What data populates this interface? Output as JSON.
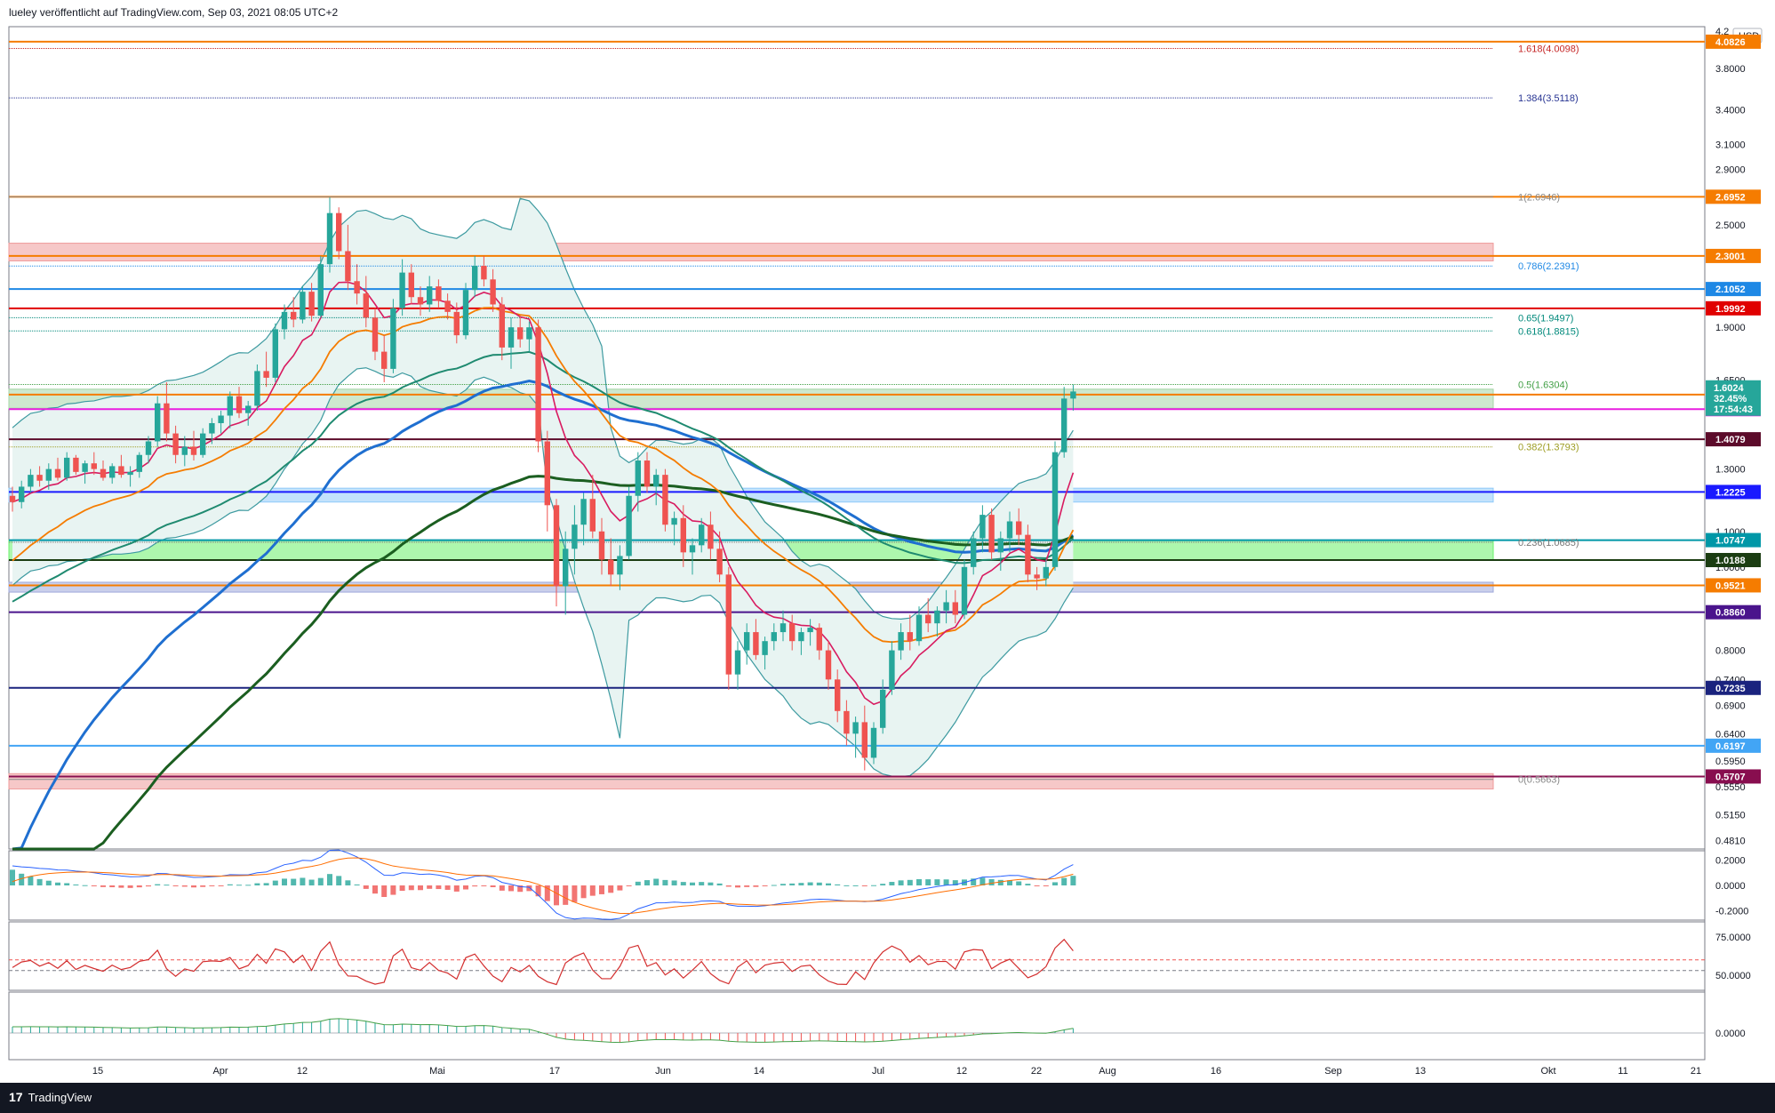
{
  "header": {
    "publish_text": "lueley veröffentlicht auf TradingView.com, Sep 03, 2021 08:05 UTC+2"
  },
  "footer": {
    "logo_text": "TradingView",
    "logo_mark": "17"
  },
  "currency": "USD",
  "colors": {
    "up": "#26a69a",
    "down": "#ef5350",
    "bb_fill": "#e8f4f2",
    "bb_line": "#3d9aa0",
    "ema_blue": "#1f6fd0",
    "ema_green": "#1b5e20",
    "ema_teal": "#1f8a70",
    "ema_orange": "#f57c00",
    "ema_red": "#d81b60"
  },
  "chart_data": {
    "type": "candlestick",
    "price_axis": {
      "ticks": [
        "4.2",
        "3.8000",
        "3.4000",
        "3.1000",
        "2.9000",
        "2.5000",
        "2.1000",
        "1.9000",
        "1.6500",
        "1.3000",
        "1.1000",
        "1.0000",
        "0.8000",
        "0.7400",
        "0.6900",
        "0.6400",
        "0.5950",
        "0.5550",
        "0.5150",
        "0.4810"
      ],
      "tick_values": [
        4.2,
        3.8,
        3.4,
        3.1,
        2.9,
        2.5,
        2.1,
        1.9,
        1.65,
        1.3,
        1.1,
        1.0,
        0.8,
        0.74,
        0.69,
        0.64,
        0.595,
        0.555,
        0.515,
        0.481
      ],
      "range": [
        0.47,
        4.25
      ],
      "scale": "log"
    },
    "x_axis": {
      "labels": [
        "15",
        "Apr",
        "12",
        "Mai",
        "17",
        "Jun",
        "14",
        "Jul",
        "12",
        "22",
        "Aug",
        "16",
        "Sep",
        "13",
        "Okt",
        "11",
        "21"
      ]
    },
    "horizontal_levels": [
      {
        "price": 4.0826,
        "color": "#f57c00",
        "badge": "4.0826"
      },
      {
        "price": 2.6952,
        "color": "#f57c00",
        "badge": "2.6952"
      },
      {
        "price": 2.3001,
        "color": "#f57c00",
        "badge": "2.3001"
      },
      {
        "price": 2.1052,
        "color": "#1e88e5",
        "badge": "2.1052"
      },
      {
        "price": 1.9992,
        "color": "#e00000",
        "badge": "1.9992"
      },
      {
        "price": 1.5867,
        "color": "#f57c00",
        "badge": "1.5867"
      },
      {
        "price": 1.526,
        "color": "#e91ee0",
        "badge": "1.5260"
      },
      {
        "price": 1.4079,
        "color": "#5c0b2a",
        "badge": "1.4079"
      },
      {
        "price": 1.2225,
        "color": "#1a1aff",
        "badge": "1.2225"
      },
      {
        "price": 1.0747,
        "color": "#0097a7",
        "badge": "1.0747"
      },
      {
        "price": 1.0188,
        "color": "#1b3d12",
        "badge": "1.0188"
      },
      {
        "price": 0.9521,
        "color": "#f57c00",
        "badge": "0.9521"
      },
      {
        "price": 0.886,
        "color": "#4a148c",
        "badge": "0.8860"
      },
      {
        "price": 0.7235,
        "color": "#1a237e",
        "badge": "0.7235"
      },
      {
        "price": 0.6197,
        "color": "#42a5f5",
        "badge": "0.6197"
      },
      {
        "price": 0.5707,
        "color": "#880e4f",
        "badge": "0.5707"
      }
    ],
    "fib_levels": [
      {
        "label": "1.618(4.0098)",
        "price": 4.0098,
        "color": "#c62828"
      },
      {
        "label": "1.384(3.5118)",
        "price": 3.5118,
        "color": "#283593"
      },
      {
        "label": "1(2.6946)",
        "price": 2.6946,
        "color": "#888888"
      },
      {
        "label": "0.786(2.2391)",
        "price": 2.2391,
        "color": "#1e88e5"
      },
      {
        "label": "0.65(1.9497)",
        "price": 1.9497,
        "color": "#00897b"
      },
      {
        "label": "0.618(1.8815)",
        "price": 1.8815,
        "color": "#00897b"
      },
      {
        "label": "0.5(1.6304)",
        "price": 1.6304,
        "color": "#43a047"
      },
      {
        "label": "0.382(1.3793)",
        "price": 1.3793,
        "color": "#9e9d24"
      },
      {
        "label": "0.236(1.0685)",
        "price": 1.0685,
        "color": "#777777"
      },
      {
        "label": "0(0.5663)",
        "price": 0.5663,
        "color": "#888888"
      }
    ],
    "current_price": {
      "price": "1.6024",
      "change": "32.45%",
      "countdown": "17:54:43"
    },
    "zones": [
      {
        "from": 2.27,
        "to": 2.38,
        "color": "#ef9a9a"
      },
      {
        "from": 1.53,
        "to": 1.61,
        "color": "#a5d6a7"
      },
      {
        "from": 1.19,
        "to": 1.235,
        "color": "#90caf9"
      },
      {
        "from": 1.02,
        "to": 1.075,
        "color": "#69f06a"
      },
      {
        "from": 0.935,
        "to": 0.96,
        "color": "#9fa8da"
      },
      {
        "from": 0.552,
        "to": 0.575,
        "color": "#ef9a9a"
      }
    ],
    "candles": [
      [
        1.21,
        1.24,
        1.16,
        1.19
      ],
      [
        1.19,
        1.26,
        1.17,
        1.24
      ],
      [
        1.24,
        1.3,
        1.22,
        1.28
      ],
      [
        1.28,
        1.31,
        1.24,
        1.26
      ],
      [
        1.26,
        1.32,
        1.23,
        1.3
      ],
      [
        1.3,
        1.34,
        1.26,
        1.27
      ],
      [
        1.27,
        1.36,
        1.26,
        1.34
      ],
      [
        1.34,
        1.35,
        1.28,
        1.29
      ],
      [
        1.29,
        1.33,
        1.25,
        1.32
      ],
      [
        1.32,
        1.36,
        1.28,
        1.3
      ],
      [
        1.3,
        1.33,
        1.26,
        1.27
      ],
      [
        1.27,
        1.32,
        1.25,
        1.31
      ],
      [
        1.31,
        1.35,
        1.27,
        1.28
      ],
      [
        1.28,
        1.31,
        1.24,
        1.29
      ],
      [
        1.29,
        1.36,
        1.27,
        1.35
      ],
      [
        1.35,
        1.42,
        1.32,
        1.4
      ],
      [
        1.4,
        1.58,
        1.38,
        1.55
      ],
      [
        1.55,
        1.64,
        1.4,
        1.43
      ],
      [
        1.43,
        1.46,
        1.32,
        1.35
      ],
      [
        1.35,
        1.42,
        1.31,
        1.38
      ],
      [
        1.38,
        1.44,
        1.33,
        1.35
      ],
      [
        1.35,
        1.45,
        1.34,
        1.43
      ],
      [
        1.43,
        1.49,
        1.39,
        1.47
      ],
      [
        1.47,
        1.52,
        1.43,
        1.5
      ],
      [
        1.5,
        1.6,
        1.45,
        1.58
      ],
      [
        1.58,
        1.62,
        1.49,
        1.51
      ],
      [
        1.51,
        1.56,
        1.46,
        1.54
      ],
      [
        1.54,
        1.72,
        1.52,
        1.69
      ],
      [
        1.69,
        1.78,
        1.62,
        1.66
      ],
      [
        1.66,
        1.92,
        1.64,
        1.89
      ],
      [
        1.89,
        2.02,
        1.84,
        1.98
      ],
      [
        1.98,
        2.06,
        1.9,
        1.94
      ],
      [
        1.94,
        2.12,
        1.92,
        2.09
      ],
      [
        2.09,
        2.14,
        1.93,
        1.96
      ],
      [
        1.96,
        2.3,
        1.95,
        2.25
      ],
      [
        2.25,
        2.69,
        2.2,
        2.58
      ],
      [
        2.58,
        2.62,
        2.28,
        2.33
      ],
      [
        2.33,
        2.5,
        2.1,
        2.15
      ],
      [
        2.15,
        2.25,
        2.02,
        2.08
      ],
      [
        2.08,
        2.18,
        1.9,
        1.95
      ],
      [
        1.95,
        2.0,
        1.74,
        1.78
      ],
      [
        1.78,
        1.86,
        1.64,
        1.7
      ],
      [
        1.7,
        2.05,
        1.68,
        2.0
      ],
      [
        2.0,
        2.28,
        1.96,
        2.2
      ],
      [
        2.2,
        2.25,
        2.02,
        2.06
      ],
      [
        2.06,
        2.12,
        1.96,
        2.02
      ],
      [
        2.02,
        2.18,
        1.98,
        2.12
      ],
      [
        2.12,
        2.16,
        2.0,
        2.04
      ],
      [
        2.04,
        2.08,
        1.94,
        1.98
      ],
      [
        1.98,
        2.03,
        1.82,
        1.86
      ],
      [
        1.86,
        2.14,
        1.84,
        2.1
      ],
      [
        2.1,
        2.3,
        2.06,
        2.24
      ],
      [
        2.24,
        2.3,
        2.12,
        2.16
      ],
      [
        2.16,
        2.22,
        1.98,
        2.02
      ],
      [
        2.02,
        2.06,
        1.74,
        1.8
      ],
      [
        1.8,
        1.95,
        1.7,
        1.9
      ],
      [
        1.9,
        1.96,
        1.8,
        1.84
      ],
      [
        1.84,
        1.93,
        1.78,
        1.9
      ],
      [
        1.9,
        1.94,
        1.36,
        1.4
      ],
      [
        1.4,
        1.44,
        1.1,
        1.18
      ],
      [
        1.18,
        1.2,
        0.9,
        0.95
      ],
      [
        0.95,
        1.1,
        0.88,
        1.05
      ],
      [
        1.05,
        1.18,
        0.98,
        1.12
      ],
      [
        1.12,
        1.22,
        1.06,
        1.2
      ],
      [
        1.2,
        1.28,
        1.08,
        1.1
      ],
      [
        1.1,
        1.14,
        0.98,
        1.02
      ],
      [
        1.02,
        1.08,
        0.95,
        0.98
      ],
      [
        0.98,
        1.06,
        0.94,
        1.03
      ],
      [
        1.03,
        1.24,
        1.02,
        1.21
      ],
      [
        1.21,
        1.36,
        1.16,
        1.33
      ],
      [
        1.33,
        1.36,
        1.22,
        1.24
      ],
      [
        1.24,
        1.3,
        1.18,
        1.28
      ],
      [
        1.28,
        1.3,
        1.1,
        1.12
      ],
      [
        1.12,
        1.16,
        1.06,
        1.14
      ],
      [
        1.14,
        1.18,
        1.0,
        1.04
      ],
      [
        1.04,
        1.08,
        0.98,
        1.06
      ],
      [
        1.06,
        1.14,
        1.04,
        1.12
      ],
      [
        1.12,
        1.16,
        1.02,
        1.05
      ],
      [
        1.05,
        1.1,
        0.96,
        0.98
      ],
      [
        0.98,
        1.0,
        0.72,
        0.75
      ],
      [
        0.75,
        0.82,
        0.72,
        0.8
      ],
      [
        0.8,
        0.86,
        0.77,
        0.84
      ],
      [
        0.84,
        0.87,
        0.78,
        0.79
      ],
      [
        0.79,
        0.83,
        0.76,
        0.82
      ],
      [
        0.82,
        0.86,
        0.8,
        0.84
      ],
      [
        0.84,
        0.89,
        0.82,
        0.86
      ],
      [
        0.86,
        0.88,
        0.8,
        0.82
      ],
      [
        0.82,
        0.85,
        0.79,
        0.84
      ],
      [
        0.84,
        0.87,
        0.81,
        0.85
      ],
      [
        0.85,
        0.86,
        0.78,
        0.8
      ],
      [
        0.8,
        0.82,
        0.72,
        0.74
      ],
      [
        0.74,
        0.76,
        0.66,
        0.68
      ],
      [
        0.68,
        0.7,
        0.62,
        0.64
      ],
      [
        0.64,
        0.67,
        0.6,
        0.66
      ],
      [
        0.66,
        0.69,
        0.58,
        0.6
      ],
      [
        0.6,
        0.66,
        0.59,
        0.65
      ],
      [
        0.65,
        0.74,
        0.64,
        0.72
      ],
      [
        0.72,
        0.82,
        0.71,
        0.8
      ],
      [
        0.8,
        0.86,
        0.78,
        0.84
      ],
      [
        0.84,
        0.88,
        0.8,
        0.82
      ],
      [
        0.82,
        0.9,
        0.81,
        0.88
      ],
      [
        0.88,
        0.92,
        0.84,
        0.86
      ],
      [
        0.86,
        0.9,
        0.83,
        0.89
      ],
      [
        0.89,
        0.94,
        0.86,
        0.91
      ],
      [
        0.91,
        0.94,
        0.86,
        0.88
      ],
      [
        0.88,
        1.02,
        0.87,
        1.0
      ],
      [
        1.0,
        1.1,
        0.98,
        1.08
      ],
      [
        1.08,
        1.18,
        1.04,
        1.15
      ],
      [
        1.15,
        1.17,
        1.02,
        1.04
      ],
      [
        1.04,
        1.1,
        0.99,
        1.08
      ],
      [
        1.08,
        1.16,
        1.04,
        1.13
      ],
      [
        1.13,
        1.17,
        1.06,
        1.09
      ],
      [
        1.09,
        1.12,
        0.96,
        0.98
      ],
      [
        0.98,
        1.0,
        0.94,
        0.97
      ],
      [
        0.97,
        1.02,
        0.95,
        1.0
      ],
      [
        1.0,
        1.4,
        0.99,
        1.36
      ],
      [
        1.36,
        1.62,
        1.34,
        1.57
      ],
      [
        1.57,
        1.63,
        1.52,
        1.6
      ]
    ]
  },
  "macd": {
    "ticks": [
      "0.2000",
      "0.0000",
      "-0.2000"
    ],
    "tick_values": [
      0.2,
      0.0,
      -0.2
    ]
  },
  "rsi": {
    "ticks": [
      "75.0000",
      "50.0000"
    ],
    "tick_values": [
      75,
      50
    ]
  },
  "osc": {
    "ticks": [
      "0.0000"
    ],
    "tick_values": [
      0.0
    ]
  }
}
